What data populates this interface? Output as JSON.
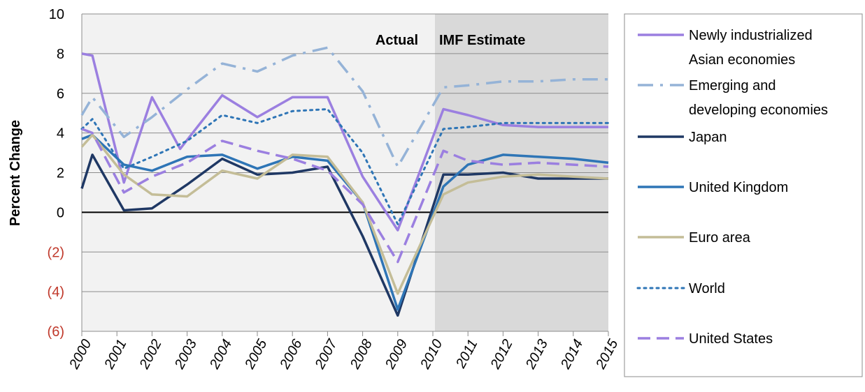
{
  "chart_data": {
    "type": "line",
    "ylabel": "Percent Change",
    "xlabel": "",
    "ylim": [
      -6,
      10
    ],
    "yticks": [
      10,
      8,
      6,
      4,
      2,
      0,
      -2,
      -4,
      -6
    ],
    "ytick_labels": [
      "10",
      "8",
      "6",
      "4",
      "2",
      "0",
      "(2)",
      "(4)",
      "(6)"
    ],
    "negative_tick_color": "#c0392b",
    "categories": [
      "2000",
      "2001",
      "2002",
      "2003",
      "2004",
      "2005",
      "2006",
      "2007",
      "2008",
      "2009",
      "2010",
      "2011",
      "2012",
      "2013",
      "2014",
      "2015"
    ],
    "grid": true,
    "legend_position": "right",
    "regions": [
      {
        "label": "Actual",
        "from": "2000",
        "to": "2010",
        "color": "#f2f2f2"
      },
      {
        "label": "IMF Estimate",
        "from": "2010",
        "to": "2015",
        "color": "#d9d9d9"
      }
    ],
    "series": [
      {
        "name": "Newly industrialized Asian economies",
        "legend_lines": [
          "Newly industrialized",
          "Asian economies"
        ],
        "color": "#9b7fe0",
        "dash": "",
        "width": 3.5,
        "x": [
          2000,
          2000.3,
          2001.2,
          2002,
          2002.8,
          2004,
          2005,
          2006,
          2007,
          2008,
          2009,
          2010.3,
          2011,
          2012,
          2013,
          2014,
          2015
        ],
        "values": [
          8.0,
          7.9,
          1.5,
          5.8,
          3.2,
          5.9,
          4.8,
          5.8,
          5.8,
          1.8,
          -0.9,
          5.2,
          4.9,
          4.4,
          4.3,
          4.3,
          4.3
        ]
      },
      {
        "name": "Emerging and developing economies",
        "legend_lines": [
          "Emerging and",
          "developing economies"
        ],
        "color": "#95b3d7",
        "dash": "22,10,4,10",
        "width": 3.5,
        "x": [
          2000,
          2000.3,
          2001.2,
          2002,
          2003,
          2004,
          2005,
          2006,
          2007,
          2008,
          2009,
          2010.3,
          2011,
          2012,
          2013,
          2014,
          2015
        ],
        "values": [
          4.9,
          5.8,
          3.8,
          4.8,
          6.2,
          7.5,
          7.1,
          7.9,
          8.3,
          6.1,
          2.3,
          6.3,
          6.4,
          6.6,
          6.6,
          6.7,
          6.7
        ]
      },
      {
        "name": "Japan",
        "legend_lines": [
          "Japan"
        ],
        "color": "#1f3864",
        "dash": "",
        "width": 3.5,
        "x": [
          2000,
          2000.3,
          2001.2,
          2002,
          2003,
          2004,
          2005,
          2006,
          2007,
          2008,
          2009,
          2010.3,
          2011,
          2012,
          2013,
          2014,
          2015
        ],
        "values": [
          1.2,
          2.9,
          0.1,
          0.2,
          1.4,
          2.7,
          1.9,
          2.0,
          2.3,
          -1.2,
          -5.2,
          1.9,
          1.9,
          2.0,
          1.7,
          1.7,
          1.7
        ]
      },
      {
        "name": "United Kingdom",
        "legend_lines": [
          "United Kingdom"
        ],
        "color": "#2e75b6",
        "dash": "",
        "width": 3.5,
        "x": [
          2000,
          2000.3,
          2001.2,
          2002,
          2003,
          2004,
          2005,
          2006,
          2007,
          2008,
          2009,
          2010.3,
          2011,
          2012,
          2013,
          2014,
          2015
        ],
        "values": [
          3.7,
          3.9,
          2.4,
          2.1,
          2.8,
          2.9,
          2.2,
          2.8,
          2.6,
          0.5,
          -4.9,
          1.3,
          2.4,
          2.9,
          2.8,
          2.7,
          2.5
        ]
      },
      {
        "name": "Euro area",
        "legend_lines": [
          "Euro area"
        ],
        "color": "#c4bd97",
        "dash": "",
        "width": 3.5,
        "x": [
          2000,
          2000.3,
          2001.2,
          2002,
          2003,
          2004,
          2005,
          2006,
          2007,
          2008,
          2009,
          2010.3,
          2011,
          2012,
          2013,
          2014,
          2015
        ],
        "values": [
          3.3,
          3.9,
          1.9,
          0.9,
          0.8,
          2.1,
          1.7,
          2.9,
          2.8,
          0.5,
          -4.1,
          0.9,
          1.5,
          1.8,
          1.9,
          1.8,
          1.7
        ]
      },
      {
        "name": "World",
        "legend_lines": [
          "World"
        ],
        "color": "#2e75b6",
        "dash": "3,6",
        "width": 3,
        "x": [
          2000,
          2000.3,
          2001.2,
          2002,
          2003,
          2004,
          2005,
          2006,
          2007,
          2008,
          2009,
          2010.3,
          2011,
          2012,
          2013,
          2014,
          2015
        ],
        "values": [
          4.2,
          4.7,
          2.2,
          2.8,
          3.6,
          4.9,
          4.5,
          5.1,
          5.2,
          3.0,
          -0.6,
          4.2,
          4.3,
          4.5,
          4.5,
          4.5,
          4.5
        ]
      },
      {
        "name": "United States",
        "legend_lines": [
          "United States"
        ],
        "color": "#9b7fe0",
        "dash": "18,9",
        "width": 3.5,
        "x": [
          2000,
          2000.3,
          2001.2,
          2002,
          2003,
          2004,
          2005,
          2006,
          2007,
          2008,
          2009,
          2010.3,
          2011,
          2012,
          2013,
          2014,
          2015
        ],
        "values": [
          4.2,
          4.0,
          1.0,
          1.8,
          2.5,
          3.6,
          3.1,
          2.7,
          2.1,
          0.4,
          -2.5,
          3.1,
          2.6,
          2.4,
          2.5,
          2.4,
          2.3
        ]
      }
    ]
  }
}
